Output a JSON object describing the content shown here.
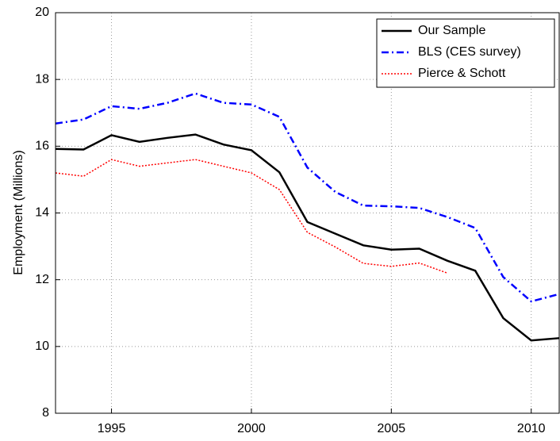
{
  "chart_data": {
    "type": "line",
    "ylabel": "Employment (Millions)",
    "x": [
      1993,
      1994,
      1995,
      1996,
      1997,
      1998,
      1999,
      2000,
      2001,
      2002,
      2003,
      2004,
      2005,
      2006,
      2007,
      2008,
      2009,
      2010,
      2011
    ],
    "series": [
      {
        "name": "Our Sample",
        "color": "#000000",
        "dash": "solid",
        "values": [
          15.92,
          15.9,
          16.33,
          16.13,
          16.25,
          16.35,
          16.05,
          15.88,
          15.22,
          13.73,
          13.38,
          13.03,
          12.9,
          12.93,
          12.57,
          12.27,
          10.85,
          10.18,
          10.25
        ]
      },
      {
        "name": "BLS (CES survey)",
        "color": "#0000ff",
        "dash": "dashdot",
        "values": [
          16.68,
          16.8,
          17.2,
          17.12,
          17.3,
          17.58,
          17.3,
          17.25,
          16.88,
          15.36,
          14.63,
          14.22,
          14.2,
          14.15,
          13.88,
          13.55,
          12.08,
          11.35,
          11.57
        ]
      },
      {
        "name": "Pierce & Schott",
        "color": "#ff0000",
        "dash": "dotted",
        "values": [
          15.2,
          15.1,
          15.6,
          15.4,
          15.5,
          15.6,
          15.4,
          15.2,
          14.7,
          13.42,
          12.98,
          12.49,
          12.4,
          12.5,
          12.2,
          null,
          null,
          null,
          null
        ]
      }
    ],
    "xlim": [
      1993,
      2011
    ],
    "xticks": [
      1995,
      2000,
      2005,
      2010
    ],
    "ylim": [
      8,
      20
    ],
    "yticks": [
      8,
      10,
      12,
      14,
      16,
      18,
      20
    ],
    "grid": true,
    "legend": "upper-right"
  }
}
